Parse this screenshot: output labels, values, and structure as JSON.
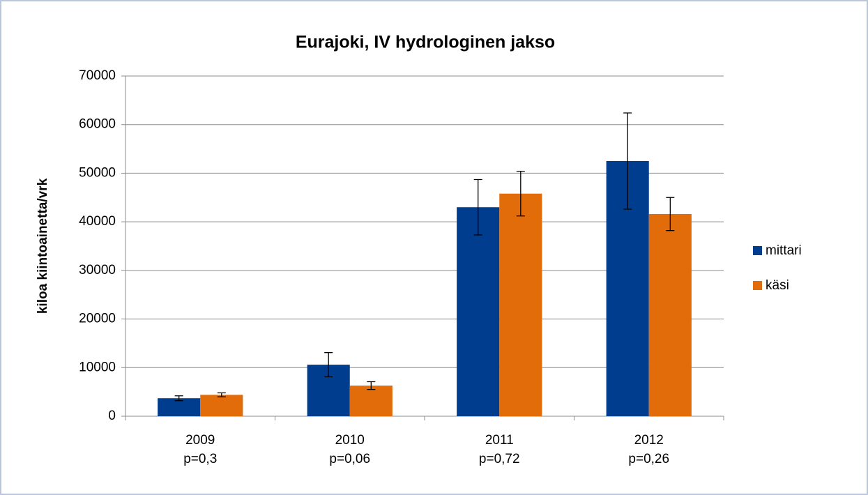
{
  "chart_data": {
    "type": "bar",
    "title": "Eurajoki, IV hydrologinen jakso",
    "y_label": "kiloa kiintoainetta/vrk",
    "categories": [
      [
        "2009",
        "p=0,3"
      ],
      [
        "2010",
        "p=0,06"
      ],
      [
        "2011",
        "p=0,72"
      ],
      [
        "2012",
        "p=0,26"
      ]
    ],
    "series": [
      {
        "name": "mittari",
        "color": "#003d8f",
        "values": [
          3700,
          10600,
          43000,
          52500
        ],
        "errors": [
          500,
          2500,
          5700,
          9900
        ]
      },
      {
        "name": "käsi",
        "color": "#e36c0a",
        "values": [
          4400,
          6300,
          45800,
          41600
        ],
        "errors": [
          400,
          800,
          4600,
          3400
        ]
      }
    ],
    "ylim": [
      0,
      70000
    ],
    "yticks": [
      0,
      10000,
      20000,
      30000,
      40000,
      50000,
      60000,
      70000
    ],
    "grid": true,
    "legend": "right"
  }
}
